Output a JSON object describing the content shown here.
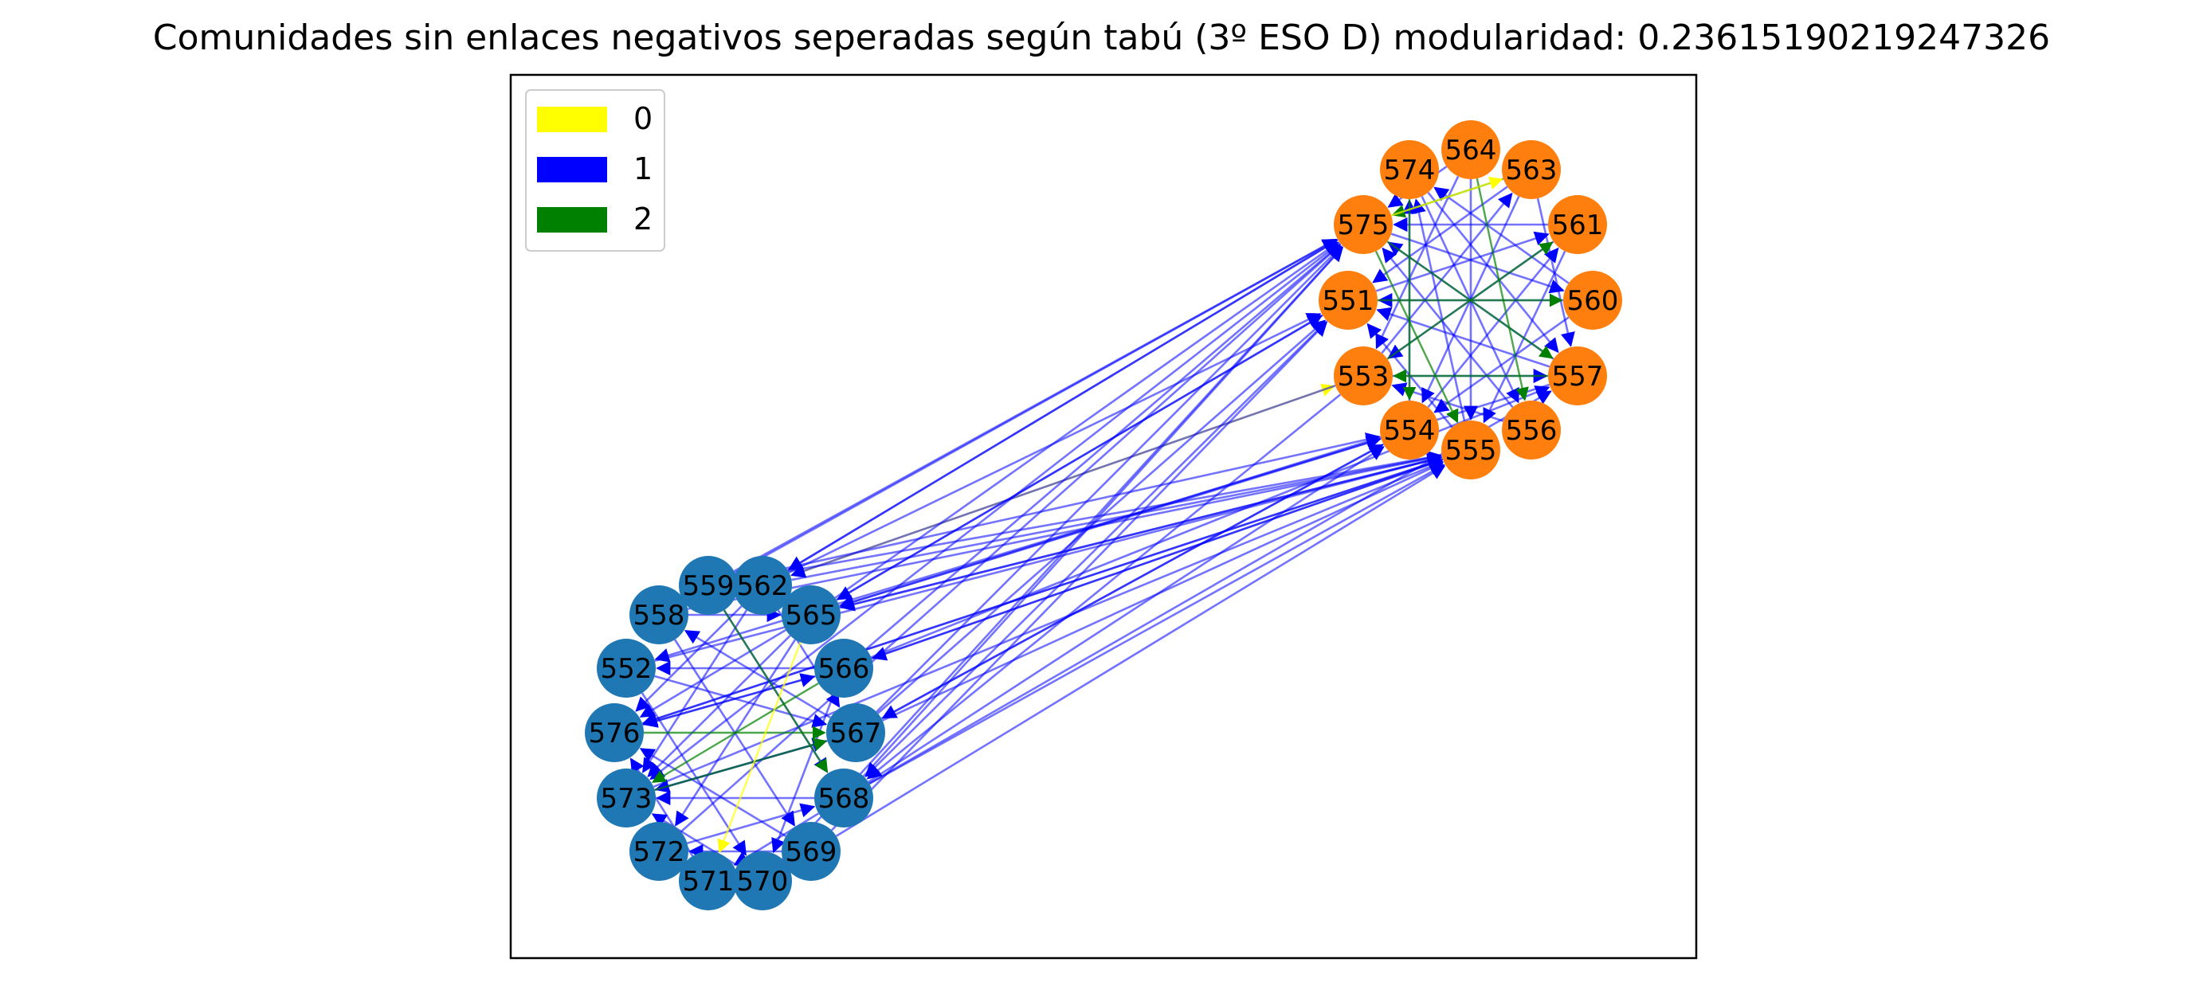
{
  "title": "Comunidades sin enlaces negativos seperadas según tabú (3º ESO D) modularidad: 0.23615190219247326",
  "legend": [
    {
      "label": "0",
      "color": "#ffff00"
    },
    {
      "label": "1",
      "color": "#0000ff"
    },
    {
      "label": "2",
      "color": "#008000"
    }
  ],
  "community_colors": {
    "blue": "#1f77b4",
    "orange": "#ff7f0e"
  },
  "communities": [
    {
      "color": "orange",
      "nodes": [
        "564",
        "563",
        "561",
        "560",
        "557",
        "556",
        "555",
        "554",
        "553",
        "551",
        "575",
        "574"
      ]
    },
    {
      "color": "blue",
      "nodes": [
        "562",
        "565",
        "566",
        "567",
        "568",
        "569",
        "570",
        "571",
        "572",
        "573",
        "576",
        "552",
        "558",
        "559"
      ]
    }
  ],
  "edges": [
    {
      "source": "562",
      "target": "575",
      "type": 1
    },
    {
      "source": "562",
      "target": "551",
      "type": 1
    },
    {
      "source": "562",
      "target": "555",
      "type": 1
    },
    {
      "source": "562",
      "target": "553",
      "type": 0
    },
    {
      "source": "559",
      "target": "575",
      "type": 1
    },
    {
      "source": "559",
      "target": "555",
      "type": 1
    },
    {
      "source": "559",
      "target": "554",
      "type": 1
    },
    {
      "source": "565",
      "target": "575",
      "type": 1
    },
    {
      "source": "565",
      "target": "555",
      "type": 1
    },
    {
      "source": "565",
      "target": "554",
      "type": 1
    },
    {
      "source": "565",
      "target": "551",
      "type": 1
    },
    {
      "source": "566",
      "target": "575",
      "type": 1
    },
    {
      "source": "566",
      "target": "555",
      "type": 1
    },
    {
      "source": "566",
      "target": "557",
      "type": 1
    },
    {
      "source": "567",
      "target": "555",
      "type": 1
    },
    {
      "source": "567",
      "target": "554",
      "type": 1
    },
    {
      "source": "567",
      "target": "575",
      "type": 1
    },
    {
      "source": "567",
      "target": "551",
      "type": 1
    },
    {
      "source": "568",
      "target": "555",
      "type": 1
    },
    {
      "source": "568",
      "target": "575",
      "type": 1
    },
    {
      "source": "568",
      "target": "554",
      "type": 1
    },
    {
      "source": "568",
      "target": "557",
      "type": 1
    },
    {
      "source": "569",
      "target": "555",
      "type": 1
    },
    {
      "source": "569",
      "target": "551",
      "type": 1
    },
    {
      "source": "572",
      "target": "575",
      "type": 1
    },
    {
      "source": "570",
      "target": "575",
      "type": 1
    },
    {
      "source": "573",
      "target": "555",
      "type": 1
    },
    {
      "source": "576",
      "target": "555",
      "type": 1
    },
    {
      "source": "552",
      "target": "555",
      "type": 1
    },
    {
      "source": "558",
      "target": "575",
      "type": 1
    },
    {
      "source": "558",
      "target": "555",
      "type": 1
    },
    {
      "source": "555",
      "target": "565",
      "type": 1
    },
    {
      "source": "555",
      "target": "566",
      "type": 1
    },
    {
      "source": "555",
      "target": "576",
      "type": 1
    },
    {
      "source": "575",
      "target": "573",
      "type": 1
    },
    {
      "source": "554",
      "target": "552",
      "type": 1
    },
    {
      "source": "554",
      "target": "567",
      "type": 1
    },
    {
      "source": "551",
      "target": "565",
      "type": 1
    },
    {
      "source": "575",
      "target": "562",
      "type": 1
    },
    {
      "source": "553",
      "target": "562",
      "type": 1
    },
    {
      "source": "553",
      "target": "568",
      "type": 1
    },
    {
      "source": "557",
      "target": "565",
      "type": 1
    },
    {
      "source": "551",
      "target": "568",
      "type": 1
    },
    {
      "source": "564",
      "target": "575",
      "type": 1
    },
    {
      "source": "564",
      "target": "553",
      "type": 1
    },
    {
      "source": "564",
      "target": "555",
      "type": 1
    },
    {
      "source": "563",
      "target": "551",
      "type": 1
    },
    {
      "source": "563",
      "target": "554",
      "type": 1
    },
    {
      "source": "563",
      "target": "557",
      "type": 1
    },
    {
      "source": "561",
      "target": "575",
      "type": 1
    },
    {
      "source": "561",
      "target": "553",
      "type": 1
    },
    {
      "source": "561",
      "target": "555",
      "type": 1
    },
    {
      "source": "560",
      "target": "551",
      "type": 1
    },
    {
      "source": "560",
      "target": "574",
      "type": 1
    },
    {
      "source": "560",
      "target": "554",
      "type": 1
    },
    {
      "source": "557",
      "target": "551",
      "type": 1
    },
    {
      "source": "557",
      "target": "575",
      "type": 1
    },
    {
      "source": "556",
      "target": "575",
      "type": 1
    },
    {
      "source": "556",
      "target": "553",
      "type": 1
    },
    {
      "source": "555",
      "target": "551",
      "type": 1
    },
    {
      "source": "555",
      "target": "574",
      "type": 1
    },
    {
      "source": "554",
      "target": "574",
      "type": 1
    },
    {
      "source": "554",
      "target": "561",
      "type": 1
    },
    {
      "source": "553",
      "target": "563",
      "type": 1
    },
    {
      "source": "553",
      "target": "557",
      "type": 1
    },
    {
      "source": "551",
      "target": "561",
      "type": 1
    },
    {
      "source": "575",
      "target": "560",
      "type": 1
    },
    {
      "source": "574",
      "target": "556",
      "type": 1
    },
    {
      "source": "574",
      "target": "557",
      "type": 1
    },
    {
      "source": "575",
      "target": "557",
      "type": 2
    },
    {
      "source": "575",
      "target": "555",
      "type": 2
    },
    {
      "source": "551",
      "target": "560",
      "type": 2
    },
    {
      "source": "553",
      "target": "561",
      "type": 2
    },
    {
      "source": "574",
      "target": "554",
      "type": 2
    },
    {
      "source": "564",
      "target": "556",
      "type": 2
    },
    {
      "source": "563",
      "target": "575",
      "type": 2
    },
    {
      "source": "557",
      "target": "553",
      "type": 2
    },
    {
      "source": "575",
      "target": "563",
      "type": 0
    },
    {
      "source": "562",
      "target": "576",
      "type": 1
    },
    {
      "source": "562",
      "target": "573",
      "type": 1
    },
    {
      "source": "562",
      "target": "567",
      "type": 1
    },
    {
      "source": "565",
      "target": "573",
      "type": 1
    },
    {
      "source": "565",
      "target": "576",
      "type": 1
    },
    {
      "source": "565",
      "target": "572",
      "type": 1
    },
    {
      "source": "566",
      "target": "576",
      "type": 1
    },
    {
      "source": "566",
      "target": "552",
      "type": 1
    },
    {
      "source": "566",
      "target": "570",
      "type": 1
    },
    {
      "source": "567",
      "target": "573",
      "type": 1
    },
    {
      "source": "567",
      "target": "558",
      "type": 1
    },
    {
      "source": "568",
      "target": "573",
      "type": 1
    },
    {
      "source": "568",
      "target": "571",
      "type": 1
    },
    {
      "source": "569",
      "target": "572",
      "type": 1
    },
    {
      "source": "569",
      "target": "576",
      "type": 1
    },
    {
      "source": "570",
      "target": "573",
      "type": 1
    },
    {
      "source": "571",
      "target": "576",
      "type": 1
    },
    {
      "source": "572",
      "target": "568",
      "type": 1
    },
    {
      "source": "573",
      "target": "567",
      "type": 1
    },
    {
      "source": "576",
      "target": "566",
      "type": 1
    },
    {
      "source": "552",
      "target": "567",
      "type": 1
    },
    {
      "source": "558",
      "target": "565",
      "type": 1
    },
    {
      "source": "559",
      "target": "565",
      "type": 1
    },
    {
      "source": "558",
      "target": "569",
      "type": 1
    },
    {
      "source": "552",
      "target": "570",
      "type": 1
    },
    {
      "source": "559",
      "target": "568",
      "type": 1
    },
    {
      "source": "576",
      "target": "567",
      "type": 2
    },
    {
      "source": "573",
      "target": "567",
      "type": 2
    },
    {
      "source": "559",
      "target": "568",
      "type": 2
    },
    {
      "source": "566",
      "target": "573",
      "type": 2
    },
    {
      "source": "562",
      "target": "558",
      "type": 0
    },
    {
      "source": "565",
      "target": "571",
      "type": 0
    }
  ]
}
